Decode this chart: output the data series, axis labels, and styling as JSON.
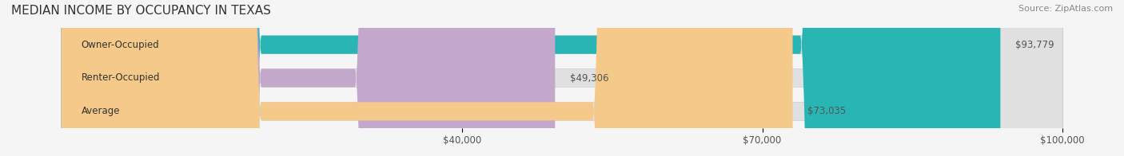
{
  "title": "MEDIAN INCOME BY OCCUPANCY IN TEXAS",
  "source": "Source: ZipAtlas.com",
  "categories": [
    "Owner-Occupied",
    "Renter-Occupied",
    "Average"
  ],
  "values": [
    93779,
    49306,
    73035
  ],
  "bar_colors": [
    "#2ab5b5",
    "#c4a8cc",
    "#f5c98a"
  ],
  "bar_bg_color": "#e8e8e8",
  "value_labels": [
    "$93,779",
    "$49,306",
    "$73,035"
  ],
  "xlim": [
    0,
    100000
  ],
  "xticks": [
    40000,
    70000,
    100000
  ],
  "xtick_labels": [
    "$40,000",
    "$70,000",
    "$100,000"
  ],
  "title_fontsize": 11,
  "source_fontsize": 8,
  "label_fontsize": 8.5,
  "bar_height": 0.55,
  "background_color": "#f5f5f5",
  "bar_bg_alpha": 0.5
}
